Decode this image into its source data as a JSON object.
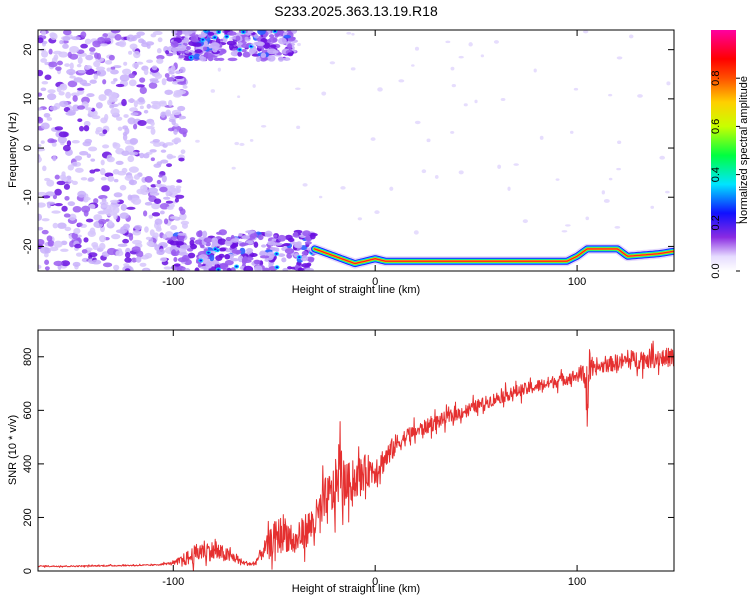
{
  "title": "S233.2025.363.13.19.R18",
  "colors": {
    "snr_line": "#e53030",
    "scatter_strong": "#6a10e0",
    "scatter_mid": "#9a5cf0",
    "scatter_weak": "#d6c6fb"
  },
  "chart_data": [
    {
      "type": "heatmap",
      "xlabel": "Height of straight line (km)",
      "ylabel": "Frequency (Hz)",
      "xlim": [
        -167,
        148
      ],
      "ylim": [
        -25,
        24
      ],
      "xticks": [
        -100,
        0,
        100
      ],
      "yticks": [
        -20,
        -10,
        0,
        10,
        20
      ],
      "grid": false,
      "colorbar": {
        "label": "Normalized spectral amplitude",
        "range": [
          0,
          1
        ],
        "ticks": [
          "0.0",
          "0.2",
          "0.4",
          "0.6",
          "0.8"
        ],
        "colormap": "rainbow (white → violet → blue → cyan → green → yellow → red → magenta)"
      },
      "features": [
        {
          "region": "broadband noise",
          "x_range": [
            -167,
            -100
          ],
          "freq_range": [
            -25,
            24
          ],
          "amplitude": "low-moderate (violet)"
        },
        {
          "region": "low band cluster",
          "x_range": [
            -100,
            -30
          ],
          "freq_range": [
            -25,
            -17
          ],
          "amplitude": "moderate (violet-blue)"
        },
        {
          "region": "high band cluster",
          "x_range": [
            -100,
            -40
          ],
          "freq_range": [
            18,
            24
          ],
          "amplitude": "moderate (violet-blue)"
        },
        {
          "region": "signal trace",
          "x_range": [
            -30,
            148
          ],
          "freq_center": [
            [
              -30,
              -20.5
            ],
            [
              -20,
              -22
            ],
            [
              -10,
              -23.5
            ],
            [
              0,
              -22.5
            ],
            [
              5,
              -23
            ],
            [
              20,
              -23
            ],
            [
              95,
              -23
            ],
            [
              100,
              -22
            ],
            [
              105,
              -20.5
            ],
            [
              120,
              -20.5
            ],
            [
              125,
              -22
            ],
            [
              140,
              -21.5
            ],
            [
              148,
              -21
            ]
          ],
          "amplitude": "high (red core, green/blue halo)"
        }
      ]
    },
    {
      "type": "line",
      "xlabel": "Height of straight line (km)",
      "ylabel": "SNR (10 * v/v)",
      "xlim": [
        -167,
        148
      ],
      "ylim": [
        0,
        900
      ],
      "xticks": [
        -100,
        0,
        100
      ],
      "yticks": [
        0,
        200,
        400,
        600,
        800
      ],
      "grid": false,
      "series": [
        {
          "x": [
            -167,
            -150,
            -130,
            -110,
            -100,
            -92,
            -85,
            -78,
            -70,
            -65,
            -60,
            -55,
            -50,
            -45,
            -40,
            -35,
            -30,
            -25,
            -20,
            -18,
            -15,
            -10,
            -5,
            0,
            5,
            10,
            15,
            20,
            30,
            40,
            50,
            60,
            70,
            80,
            90,
            100,
            104,
            105,
            106,
            107,
            108,
            110,
            120,
            130,
            140,
            148
          ],
          "y": [
            18,
            18,
            20,
            22,
            30,
            50,
            80,
            70,
            50,
            30,
            25,
            80,
            120,
            150,
            100,
            150,
            180,
            250,
            300,
            380,
            320,
            340,
            370,
            380,
            420,
            470,
            500,
            520,
            555,
            585,
            615,
            645,
            670,
            690,
            710,
            730,
            740,
            600,
            760,
            750,
            740,
            760,
            780,
            790,
            795,
            800
          ],
          "noise_amplitude": [
            3,
            3,
            3,
            3,
            6,
            40,
            50,
            45,
            25,
            10,
            10,
            40,
            80,
            90,
            60,
            80,
            90,
            120,
            120,
            160,
            100,
            90,
            80,
            70,
            60,
            50,
            40,
            35,
            35,
            30,
            30,
            30,
            30,
            30,
            30,
            30,
            60,
            150,
            100,
            40,
            30,
            30,
            40,
            45,
            45,
            45
          ]
        }
      ]
    }
  ]
}
